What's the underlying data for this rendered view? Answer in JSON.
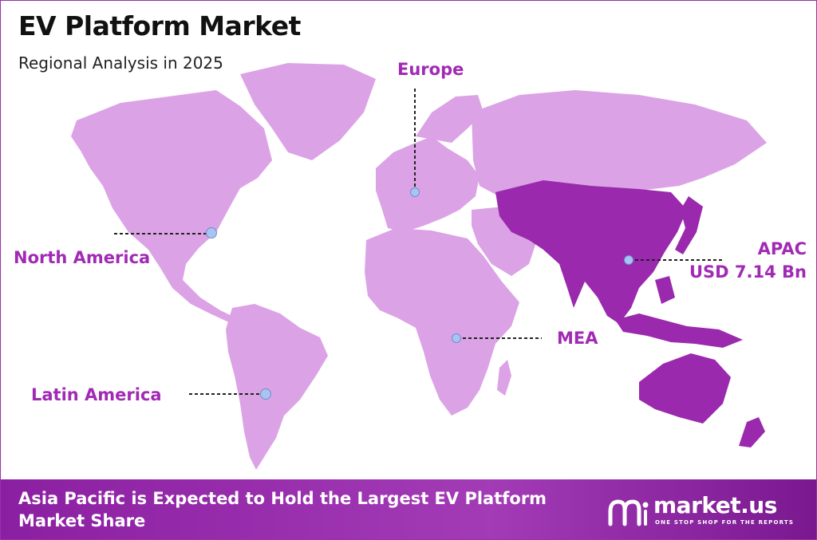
{
  "header": {
    "title": "EV Platform Market",
    "subtitle": "Regional Analysis in 2025"
  },
  "regions": {
    "europe": "Europe",
    "north_america": "North America",
    "latin_america": "Latin America",
    "mea": "MEA",
    "apac_name": "APAC",
    "apac_value": "USD 7.14 Bn"
  },
  "colors": {
    "land": "#dca2e6",
    "apac_land": "#9a29ae",
    "accent_text": "#a12ab5",
    "footer_bg": "#8b1fa1",
    "marker": "#a9c4f0"
  },
  "footer": {
    "headline": "Asia Pacific is Expected to Hold the Largest EV Platform Market Share",
    "brand_name": "market.us",
    "brand_tagline": "ONE STOP SHOP FOR THE REPORTS"
  },
  "icons": {
    "brand_logo": "market-us-logo-icon",
    "marker": "location-dot-icon"
  }
}
